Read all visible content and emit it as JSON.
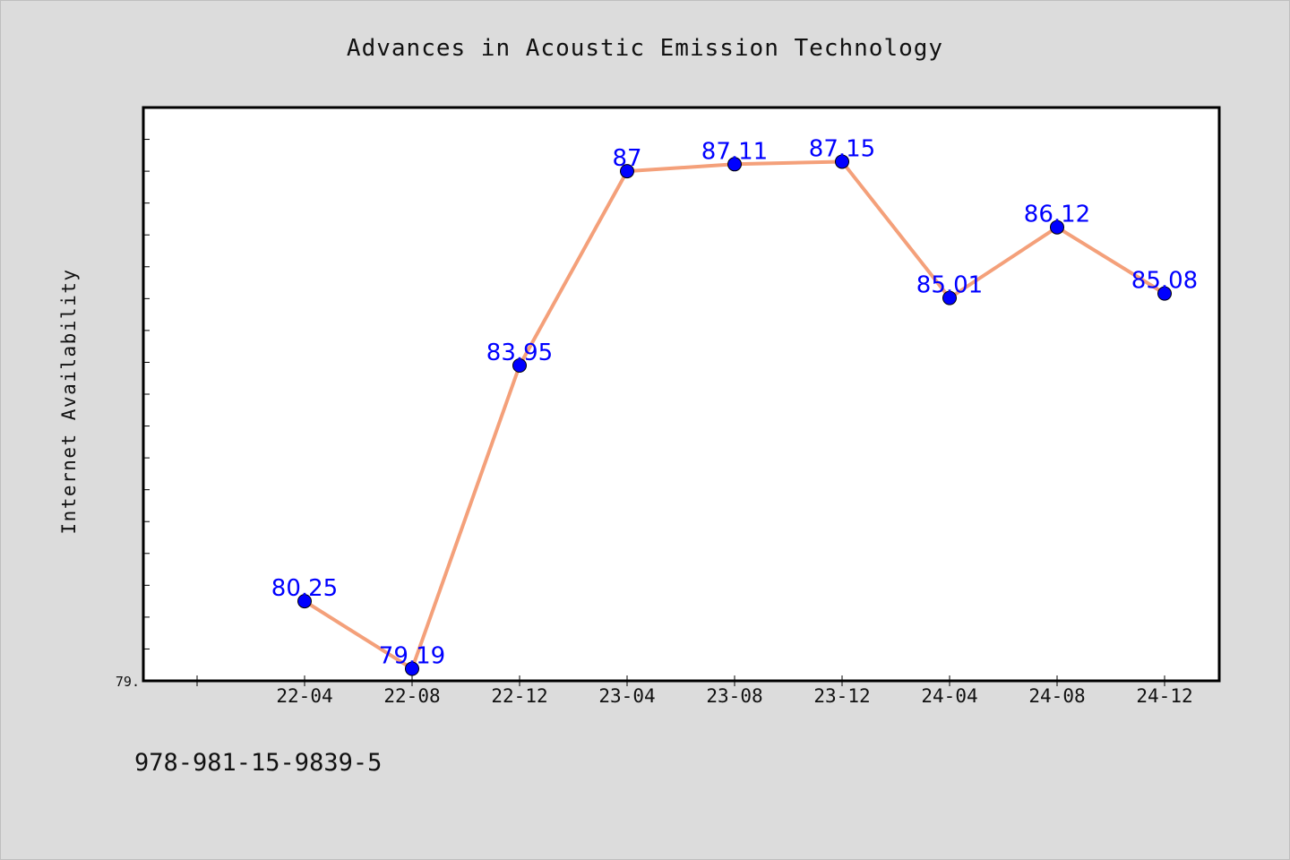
{
  "chart_data": {
    "type": "line",
    "title": "Advances in Acoustic Emission Technology",
    "xlabel": "",
    "ylabel": "Internet Availability",
    "categories": [
      "22-04",
      "22-08",
      "22-12",
      "23-04",
      "23-08",
      "23-12",
      "24-04",
      "24-08",
      "24-12"
    ],
    "series": [
      {
        "values": [
          80.25,
          79.19,
          83.95,
          87,
          87.11,
          87.15,
          85.01,
          86.12,
          85.08
        ]
      }
    ],
    "data_labels": [
      "80.25",
      "79.19",
      "83.95",
      "87",
      "87.11",
      "87.15",
      "85.01",
      "86.12",
      "85.08"
    ],
    "ylim": [
      79,
      88
    ],
    "y_tick_label": "79.",
    "grid": false,
    "line_color": "#f4a07a",
    "marker_color": "#0000ff",
    "label_color": "#0000ff"
  },
  "footer": {
    "code": "978-981-15-9839-5"
  }
}
